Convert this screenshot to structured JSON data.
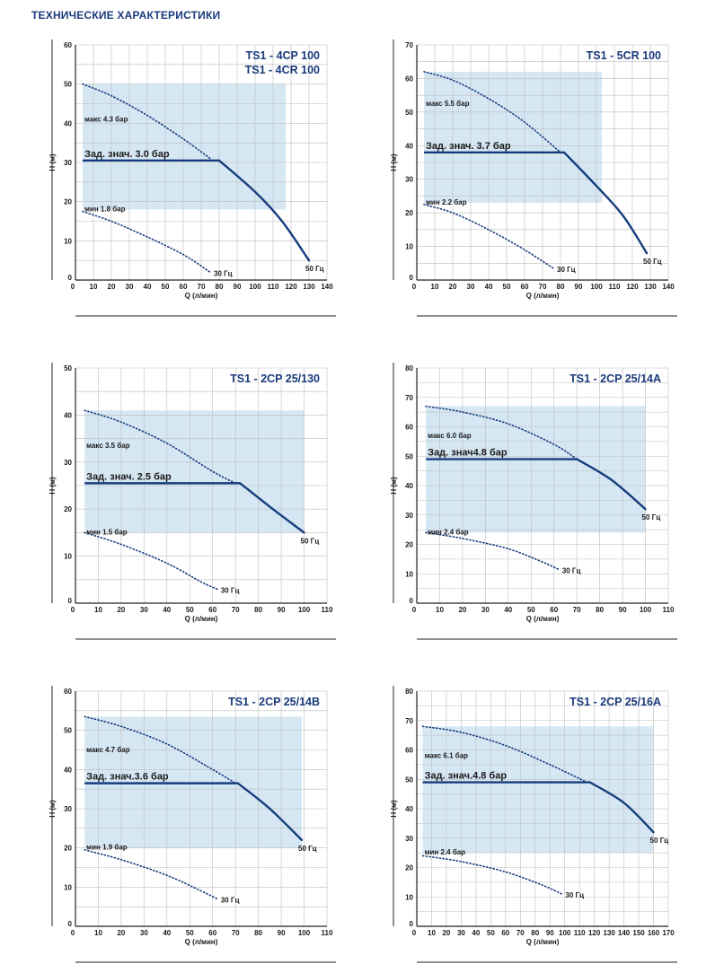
{
  "page": {
    "title": "ТЕХНИЧЕСКИЕ ХАРАКТЕРИСТИКИ"
  },
  "colors": {
    "curve": "#173d7d",
    "title": "#1a3a7c",
    "fill": "#cfe3f2",
    "grid": "#bdbdbd",
    "text": "#1a1a1a",
    "dotted": "#173d7d"
  },
  "chart_data": [
    {
      "type": "line",
      "title_lines": [
        "TS1 - 4CP 100",
        "TS1 - 4CR 100"
      ],
      "xlabel": "Q (л/мин)",
      "ylabel": "H (м)",
      "xlim": [
        0,
        140
      ],
      "ylim": [
        0,
        60
      ],
      "xticks": [
        0,
        10,
        20,
        30,
        40,
        50,
        60,
        70,
        80,
        90,
        100,
        110,
        120,
        130,
        140
      ],
      "yticks": [
        0,
        10,
        20,
        30,
        40,
        50,
        60
      ],
      "grid": true,
      "setpoint": {
        "label": "Зад. знач. 3.0 бар",
        "x": [
          4,
          80
        ],
        "y": 30.5
      },
      "max_label": "макс 4.3 бар",
      "min_label": "мин 1.8 бар",
      "label_50hz": "50 Гц",
      "label_30hz": "30 Гц",
      "curve_50hz": [
        [
          80,
          30.5
        ],
        [
          100,
          22.5
        ],
        [
          115,
          15
        ],
        [
          130,
          5
        ]
      ],
      "curve_30hz": [
        [
          4,
          17.5
        ],
        [
          20,
          15
        ],
        [
          40,
          11
        ],
        [
          60,
          6.5
        ],
        [
          75,
          2
        ]
      ],
      "curve_max": [
        [
          4,
          50
        ],
        [
          20,
          47
        ],
        [
          40,
          42
        ],
        [
          60,
          36
        ],
        [
          75,
          31
        ]
      ],
      "band": {
        "x": [
          4,
          117
        ],
        "y": [
          18,
          50
        ]
      }
    },
    {
      "type": "line",
      "title_lines": [
        "TS1 - 5CR 100"
      ],
      "xlabel": "Q (л/мин)",
      "ylabel": "H (м)",
      "xlim": [
        0,
        140
      ],
      "ylim": [
        0,
        70
      ],
      "xticks": [
        0,
        10,
        20,
        30,
        40,
        50,
        60,
        70,
        80,
        90,
        100,
        110,
        120,
        130,
        140
      ],
      "yticks": [
        0,
        10,
        20,
        30,
        40,
        50,
        60,
        70
      ],
      "grid": true,
      "setpoint": {
        "label": "Зад. знач.  3.7 бар",
        "x": [
          4,
          82
        ],
        "y": 38
      },
      "max_label": "макс 5.5 бар",
      "min_label": "мин 2.2 бар",
      "label_50hz": "50 Гц",
      "label_30hz": "30 Гц",
      "curve_50hz": [
        [
          82,
          38
        ],
        [
          100,
          28
        ],
        [
          115,
          19
        ],
        [
          128,
          8
        ]
      ],
      "curve_30hz": [
        [
          4,
          22.5
        ],
        [
          20,
          20
        ],
        [
          40,
          15
        ],
        [
          60,
          9
        ],
        [
          76,
          3.5
        ]
      ],
      "curve_max": [
        [
          4,
          62
        ],
        [
          20,
          59.5
        ],
        [
          40,
          54
        ],
        [
          60,
          47
        ],
        [
          80,
          38
        ]
      ],
      "band": {
        "x": [
          4,
          103
        ],
        "y": [
          23,
          62
        ]
      }
    },
    {
      "type": "line",
      "title_lines": [
        "TS1 - 2CP 25/130"
      ],
      "xlabel": "Q (л/мин)",
      "ylabel": "H (м)",
      "xlim": [
        0,
        110
      ],
      "ylim": [
        0,
        50
      ],
      "xticks": [
        0,
        10,
        20,
        30,
        40,
        50,
        60,
        70,
        80,
        90,
        100,
        110
      ],
      "yticks": [
        0,
        10,
        20,
        30,
        40,
        50
      ],
      "grid": true,
      "setpoint": {
        "label": "Зад. знач. 2.5 бар",
        "x": [
          4,
          72
        ],
        "y": 25.5
      },
      "max_label": "макс 3.5 бар",
      "min_label": "мин 1.5 бар",
      "label_50hz": "50 Гц",
      "label_30hz": "30  Гц",
      "curve_50hz": [
        [
          72,
          25.5
        ],
        [
          85,
          20.5
        ],
        [
          100,
          15
        ]
      ],
      "curve_30hz": [
        [
          4,
          15
        ],
        [
          20,
          12.5
        ],
        [
          40,
          8.5
        ],
        [
          55,
          4.5
        ],
        [
          62,
          3
        ]
      ],
      "curve_max": [
        [
          4,
          41
        ],
        [
          20,
          38.5
        ],
        [
          40,
          34
        ],
        [
          60,
          28
        ],
        [
          70,
          25.5
        ]
      ],
      "band": {
        "x": [
          4,
          100
        ],
        "y": [
          15,
          41
        ]
      }
    },
    {
      "type": "line",
      "title_lines": [
        "TS1 - 2CP 25/14A"
      ],
      "xlabel": "Q (л/мин)",
      "ylabel": "H (м)",
      "xlim": [
        0,
        110
      ],
      "ylim": [
        0,
        80
      ],
      "xticks": [
        0,
        10,
        20,
        30,
        40,
        50,
        60,
        70,
        80,
        90,
        100,
        110
      ],
      "yticks": [
        0,
        10,
        20,
        30,
        40,
        50,
        60,
        70,
        80
      ],
      "grid": true,
      "setpoint": {
        "label": "Зад. знач4.8 бар",
        "x": [
          4,
          70
        ],
        "y": 49
      },
      "max_label": "макс 6.0 бар",
      "min_label": "мин 2.4 бар",
      "label_50hz": "50 Гц",
      "label_30hz": "30 Гц",
      "curve_50hz": [
        [
          70,
          49
        ],
        [
          85,
          42
        ],
        [
          100,
          32
        ]
      ],
      "curve_30hz": [
        [
          4,
          24
        ],
        [
          20,
          22
        ],
        [
          40,
          18.5
        ],
        [
          55,
          14
        ],
        [
          62,
          11.5
        ]
      ],
      "curve_max": [
        [
          4,
          67
        ],
        [
          20,
          65
        ],
        [
          40,
          61
        ],
        [
          60,
          54
        ],
        [
          70,
          49
        ]
      ],
      "band": {
        "x": [
          4,
          100
        ],
        "y": [
          24,
          67
        ]
      }
    },
    {
      "type": "line",
      "title_lines": [
        "TS1 - 2CP 25/14B"
      ],
      "xlabel": "Q (л/мин)",
      "ylabel": "H (м)",
      "xlim": [
        0,
        110
      ],
      "ylim": [
        0,
        60
      ],
      "xticks": [
        0,
        10,
        20,
        30,
        40,
        50,
        60,
        70,
        80,
        90,
        100,
        110
      ],
      "yticks": [
        0,
        10,
        20,
        30,
        40,
        50,
        60
      ],
      "grid": true,
      "setpoint": {
        "label": "Зад. знач.3.6 бар",
        "x": [
          4,
          71
        ],
        "y": 36.5
      },
      "max_label": "макс 4.7 бар",
      "min_label": "мин 1.9 бар",
      "label_50hz": "50 Гц",
      "label_30hz": "30 Гц",
      "curve_50hz": [
        [
          71,
          36.5
        ],
        [
          85,
          30
        ],
        [
          99,
          22
        ]
      ],
      "curve_30hz": [
        [
          4,
          19.5
        ],
        [
          20,
          17
        ],
        [
          40,
          13
        ],
        [
          55,
          9
        ],
        [
          62,
          7
        ]
      ],
      "curve_max": [
        [
          4,
          53.5
        ],
        [
          20,
          51
        ],
        [
          40,
          46.5
        ],
        [
          60,
          40
        ],
        [
          70,
          36.5
        ]
      ],
      "band": {
        "x": [
          4,
          99
        ],
        "y": [
          20,
          53.5
        ]
      }
    },
    {
      "type": "line",
      "title_lines": [
        "TS1 - 2CP 25/16A"
      ],
      "xlabel": "Q (л/мин)",
      "ylabel": "H (м)",
      "xlim": [
        0,
        170
      ],
      "ylim": [
        0,
        80
      ],
      "xticks": [
        0,
        10,
        20,
        30,
        40,
        50,
        60,
        70,
        80,
        90,
        100,
        110,
        120,
        130,
        140,
        150,
        160,
        170
      ],
      "yticks": [
        0,
        10,
        20,
        30,
        40,
        50,
        60,
        70,
        80
      ],
      "grid": true,
      "setpoint": {
        "label": "Зад. знач.4.8 бар",
        "x": [
          4,
          117
        ],
        "y": 49
      },
      "max_label": "макс 6.1 бар",
      "min_label": "мин 2.4 бар",
      "label_50hz": "50 Гц",
      "label_30hz": "30 Гц",
      "curve_50hz": [
        [
          117,
          49
        ],
        [
          140,
          42
        ],
        [
          160,
          32
        ]
      ],
      "curve_30hz": [
        [
          4,
          24
        ],
        [
          30,
          22
        ],
        [
          60,
          18.5
        ],
        [
          85,
          14
        ],
        [
          98,
          11
        ]
      ],
      "curve_max": [
        [
          4,
          68
        ],
        [
          30,
          66
        ],
        [
          60,
          61.5
        ],
        [
          90,
          55
        ],
        [
          115,
          49
        ]
      ],
      "band": {
        "x": [
          4,
          160
        ],
        "y": [
          25,
          68
        ]
      }
    }
  ]
}
